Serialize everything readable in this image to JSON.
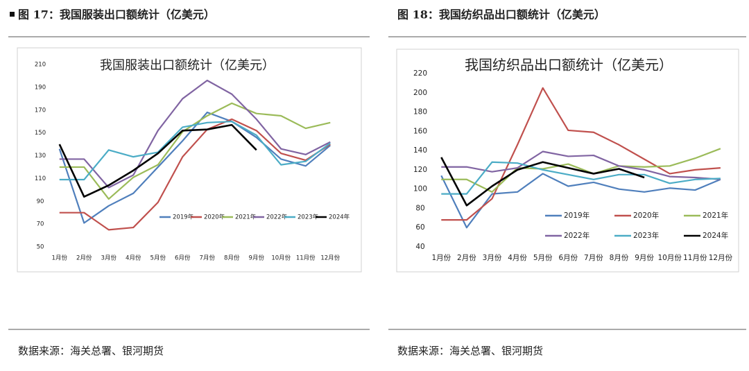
{
  "captions": [
    "图 17：我国服装出口额统计（亿美元）",
    "图 18：我国纺织品出口额统计（亿美元）"
  ],
  "sources": [
    "数据来源：海关总署、银河期货",
    "数据来源：海关总署、银河期货"
  ],
  "chart_data": [
    {
      "type": "line",
      "title": "我国服装出口额统计（亿美元）",
      "categories": [
        "1月份",
        "2月份",
        "3月份",
        "4月份",
        "5月份",
        "6月份",
        "7月份",
        "8月份",
        "9月份",
        "10月份",
        "11月份",
        "12月份"
      ],
      "ylim": [
        50,
        210
      ],
      "yticks": [
        50,
        70,
        90,
        110,
        130,
        150,
        170,
        190,
        210
      ],
      "grid": false,
      "legend": "bottom-right",
      "series": [
        {
          "name": "2019年",
          "color": "#4f7fbc",
          "values": [
            136,
            71,
            86,
            97,
            120,
            143,
            168,
            160,
            146,
            127,
            121,
            139
          ]
        },
        {
          "name": "2020年",
          "color": "#c0504d",
          "values": [
            80,
            80,
            65,
            67,
            89,
            129,
            153,
            162,
            152,
            132,
            126,
            140
          ]
        },
        {
          "name": "2021年",
          "color": "#9bbb59",
          "values": [
            120,
            120,
            92,
            111,
            122,
            151,
            165,
            176,
            167,
            165,
            154,
            159
          ]
        },
        {
          "name": "2022年",
          "color": "#8064a2",
          "values": [
            127,
            127,
            102,
            113,
            152,
            180,
            196,
            184,
            162,
            136,
            131,
            142
          ]
        },
        {
          "name": "2023年",
          "color": "#4bacc6",
          "values": [
            109,
            109,
            135,
            129,
            133,
            155,
            159,
            160,
            148,
            122,
            125,
            141
          ]
        },
        {
          "name": "2024年",
          "color": "#000000",
          "values": [
            140,
            94,
            104,
            117,
            132,
            152,
            153,
            157,
            135,
            null,
            null,
            null
          ]
        }
      ]
    },
    {
      "type": "line",
      "title": "我国纺织品出口额统计（亿美元）",
      "categories": [
        "1月份",
        "2月份",
        "3月份",
        "4月份",
        "5月份",
        "6月份",
        "7月份",
        "8月份",
        "9月份",
        "10月份",
        "11月份",
        "12月份"
      ],
      "ylim": [
        40,
        220
      ],
      "yticks": [
        40,
        60,
        80,
        100,
        120,
        140,
        160,
        180,
        200,
        220
      ],
      "grid": false,
      "legend": "bottom-right",
      "series": [
        {
          "name": "2019年",
          "color": "#4f7fbc",
          "values": [
            114,
            60,
            95,
            97,
            116,
            103,
            107,
            100,
            97,
            101,
            99,
            110
          ]
        },
        {
          "name": "2020年",
          "color": "#c0504d",
          "values": [
            68,
            68,
            90,
            146,
            205,
            161,
            159,
            146,
            131,
            116,
            120,
            122
          ]
        },
        {
          "name": "2021年",
          "color": "#9bbb59",
          "values": [
            110,
            110,
            97,
            122,
            121,
            126,
            116,
            124,
            123,
            124,
            132,
            142
          ]
        },
        {
          "name": "2022年",
          "color": "#8064a2",
          "values": [
            123,
            123,
            118,
            122,
            139,
            134,
            135,
            124,
            120,
            113,
            112,
            110
          ]
        },
        {
          "name": "2023年",
          "color": "#4bacc6",
          "values": [
            95,
            95,
            128,
            127,
            120,
            115,
            110,
            115,
            115,
            106,
            110,
            111
          ]
        },
        {
          "name": "2024年",
          "color": "#000000",
          "values": [
            133,
            83,
            103,
            120,
            128,
            122,
            116,
            121,
            112,
            null,
            null,
            null
          ]
        }
      ]
    }
  ]
}
